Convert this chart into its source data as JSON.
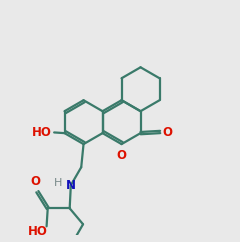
{
  "bg_color": "#e9e9e9",
  "bond_color": "#3a7a6a",
  "O_color": "#dd1100",
  "N_color": "#1111bb",
  "H_color": "#778888",
  "lw": 1.6,
  "dbo": 0.055,
  "fs": 8.5
}
